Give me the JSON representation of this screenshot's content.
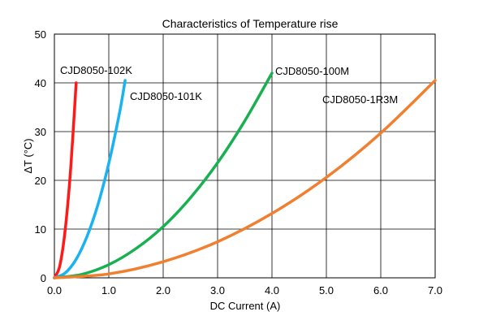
{
  "chart_data": {
    "type": "line",
    "title": "Characteristics of Temperature rise",
    "xlabel": "DC Current (A)",
    "ylabel": "ΔT (°C)",
    "xlim": [
      0,
      7
    ],
    "ylim": [
      0,
      50
    ],
    "x_ticks": [
      "0.0",
      "1.0",
      "2.0",
      "3.0",
      "4.0",
      "5.0",
      "6.0",
      "7.0"
    ],
    "y_ticks": [
      "0",
      "10",
      "20",
      "30",
      "40",
      "50"
    ],
    "grid": true,
    "series": [
      {
        "name": "CJD8050-102K",
        "color": "#ff1a1a",
        "points": [
          [
            0,
            0
          ],
          [
            0.1,
            2.5
          ],
          [
            0.2,
            10
          ],
          [
            0.3,
            22.5
          ],
          [
            0.4,
            40
          ]
        ]
      },
      {
        "name": "CJD8050-101K",
        "color": "#1ab2f0",
        "points": [
          [
            0,
            0
          ],
          [
            0.2,
            1
          ],
          [
            0.4,
            3.8
          ],
          [
            0.6,
            8.5
          ],
          [
            0.8,
            15
          ],
          [
            1.0,
            23.5
          ],
          [
            1.2,
            34
          ],
          [
            1.3,
            40.5
          ]
        ]
      },
      {
        "name": "CJD8050-100M",
        "color": "#18b050",
        "points": [
          [
            0,
            0
          ],
          [
            0.5,
            0.7
          ],
          [
            1.0,
            2.7
          ],
          [
            1.5,
            6
          ],
          [
            2.0,
            10.5
          ],
          [
            2.5,
            16.4
          ],
          [
            3.0,
            23.6
          ],
          [
            3.5,
            32.2
          ],
          [
            4.0,
            42
          ]
        ]
      },
      {
        "name": "CJD8050-1R3M",
        "color": "#f08030",
        "points": [
          [
            0,
            0
          ],
          [
            1.0,
            0.8
          ],
          [
            2.0,
            3.3
          ],
          [
            3.0,
            7.4
          ],
          [
            4.0,
            13.2
          ],
          [
            5.0,
            20.6
          ],
          [
            6.0,
            29.7
          ],
          [
            7.0,
            40.5
          ]
        ]
      }
    ]
  }
}
